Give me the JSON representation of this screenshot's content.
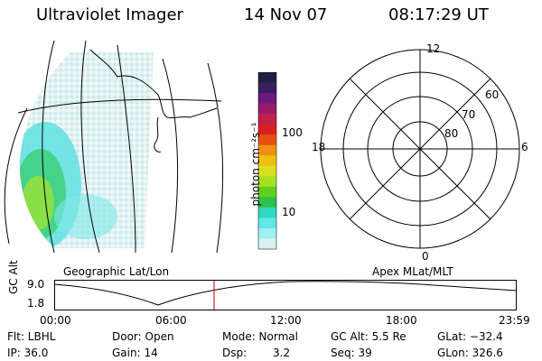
{
  "header": {
    "instrument": "Ultraviolet Imager",
    "date": "14 Nov 07",
    "time": "08:17:29 UT"
  },
  "map_panel": {
    "label": "Geographic Lat/Lon"
  },
  "colorbar": {
    "unit_label": "photon cm⁻²s⁻¹",
    "ticks": [
      "100",
      "10"
    ],
    "colors": [
      "#202040",
      "#3a1f5e",
      "#6a1a78",
      "#9a1a6a",
      "#c0204a",
      "#d82020",
      "#e85010",
      "#f09010",
      "#f0c010",
      "#d8e020",
      "#a8e020",
      "#60d020",
      "#30c050",
      "#30d8c0",
      "#60e8e8",
      "#a0f0f0",
      "#d8f0f0"
    ]
  },
  "polar_plot": {
    "label": "Apex MLat/MLT",
    "mlt_labels": [
      "12",
      "18",
      "6",
      "0"
    ],
    "lat_labels": [
      "60",
      "70",
      "80"
    ]
  },
  "altitude_plot": {
    "ylabel": "GC Alt",
    "yticks": [
      "9.0",
      "1.8"
    ],
    "xticks": [
      "00:00",
      "06:00",
      "12:00",
      "18:00",
      "23:59"
    ],
    "marker_color": "#d02020"
  },
  "status": {
    "flt": "Flt: LBHL",
    "ip": "IP: 36.0",
    "door": "Door: Open",
    "gain": "Gain: 14",
    "mode": "Mode: Normal",
    "dsp": "Dsp:",
    "dsp_value": "3.2",
    "gc_alt": "GC Alt: 5.5 Re",
    "seq": "Seq: 39",
    "glat": "GLat: −32.4",
    "glon": "GLon: 326.6"
  }
}
